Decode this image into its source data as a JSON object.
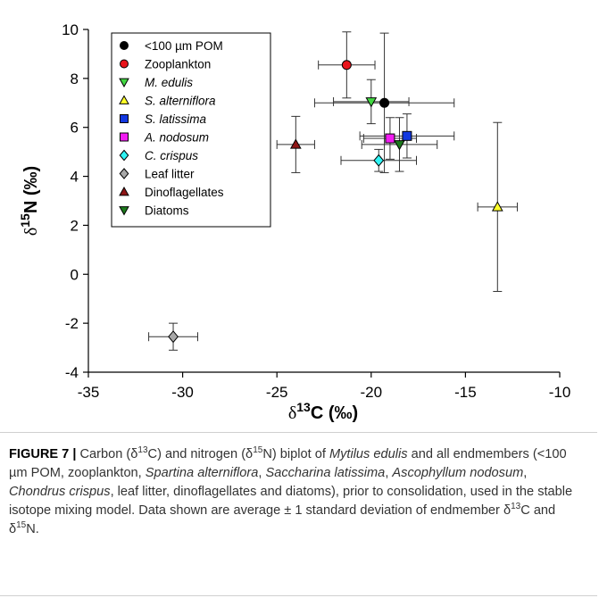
{
  "chart_data": {
    "type": "scatter",
    "xlabel": "δ¹³C (‰)",
    "ylabel": "δ¹⁵N (‰)",
    "xlim": [
      -35,
      -10
    ],
    "ylim": [
      -4,
      10
    ],
    "x_ticks": [
      -35,
      -30,
      -25,
      -20,
      -15,
      -10
    ],
    "y_ticks": [
      -4,
      -2,
      0,
      2,
      4,
      6,
      8,
      10
    ],
    "grid": false,
    "legend_position": "top-left",
    "series": [
      {
        "name": "<100 µm POM",
        "marker": "circle",
        "color": "#000000",
        "x": -19.3,
        "y": 7.0,
        "x_sd": 3.7,
        "y_sd": 2.85
      },
      {
        "name": "Zooplankton",
        "marker": "circle",
        "color": "#e8141b",
        "x": -21.3,
        "y": 8.55,
        "x_sd": 1.5,
        "y_sd": 1.35
      },
      {
        "name": "M. edulis",
        "italic": true,
        "marker": "triangle-down",
        "color": "#42d842",
        "x": -20.0,
        "y": 7.05,
        "x_sd": 2.0,
        "y_sd": 0.9
      },
      {
        "name": "S. alterniflora",
        "italic": true,
        "marker": "triangle-up",
        "color": "#ffff2a",
        "x": -13.3,
        "y": 2.75,
        "x_sd": 1.05,
        "y_sd": 3.45
      },
      {
        "name": "S. latissima",
        "italic": true,
        "marker": "square",
        "color": "#1238e0",
        "x": -18.1,
        "y": 5.65,
        "x_sd": 2.5,
        "y_sd": 0.9
      },
      {
        "name": "A. nodosum",
        "italic": true,
        "marker": "square",
        "color": "#f21cf2",
        "x": -19.0,
        "y": 5.55,
        "x_sd": 1.4,
        "y_sd": 0.85
      },
      {
        "name": "C. crispus",
        "italic": true,
        "marker": "diamond",
        "color": "#2ff4f4",
        "x": -19.6,
        "y": 4.65,
        "x_sd": 2.0,
        "y_sd": 0.45
      },
      {
        "name": "Leaf litter",
        "marker": "diamond",
        "color": "#a8a8a8",
        "x": -30.5,
        "y": -2.55,
        "x_sd": 1.3,
        "y_sd": 0.55
      },
      {
        "name": "Dinoflagellates",
        "marker": "triangle-up",
        "color": "#8f1616",
        "x": -24.0,
        "y": 5.3,
        "x_sd": 1.0,
        "y_sd": 1.15
      },
      {
        "name": "Diatoms",
        "marker": "triangle-down",
        "color": "#1c7a1c",
        "x": -18.5,
        "y": 5.3,
        "x_sd": 2.0,
        "y_sd": 1.1
      }
    ]
  },
  "caption": {
    "figure_number": "FIGURE 7 |",
    "segments": [
      {
        "t": " Carbon (δ",
        "i": false
      },
      {
        "t": "13",
        "sup": true
      },
      {
        "t": "C) and nitrogen (δ",
        "i": false
      },
      {
        "t": "15",
        "sup": true
      },
      {
        "t": "N) biplot of ",
        "i": false
      },
      {
        "t": "Mytilus edulis",
        "i": true
      },
      {
        "t": " and all endmembers (<100 µm POM, zooplankton, ",
        "i": false
      },
      {
        "t": "Spartina alterniflora",
        "i": true
      },
      {
        "t": ", ",
        "i": false
      },
      {
        "t": "Saccharina latissima",
        "i": true
      },
      {
        "t": ", ",
        "i": false
      },
      {
        "t": "Ascophyllum nodosum",
        "i": true
      },
      {
        "t": ", ",
        "i": false
      },
      {
        "t": "Chondrus crispus",
        "i": true
      },
      {
        "t": ", leaf litter, dinoflagellates and diatoms), prior to consolidation, used in the stable isotope mixing model. Data shown are average ± 1 standard deviation of endmember δ",
        "i": false
      },
      {
        "t": "13",
        "sup": true
      },
      {
        "t": "C and δ",
        "i": false
      },
      {
        "t": "15",
        "sup": true
      },
      {
        "t": "N.",
        "i": false
      }
    ]
  }
}
